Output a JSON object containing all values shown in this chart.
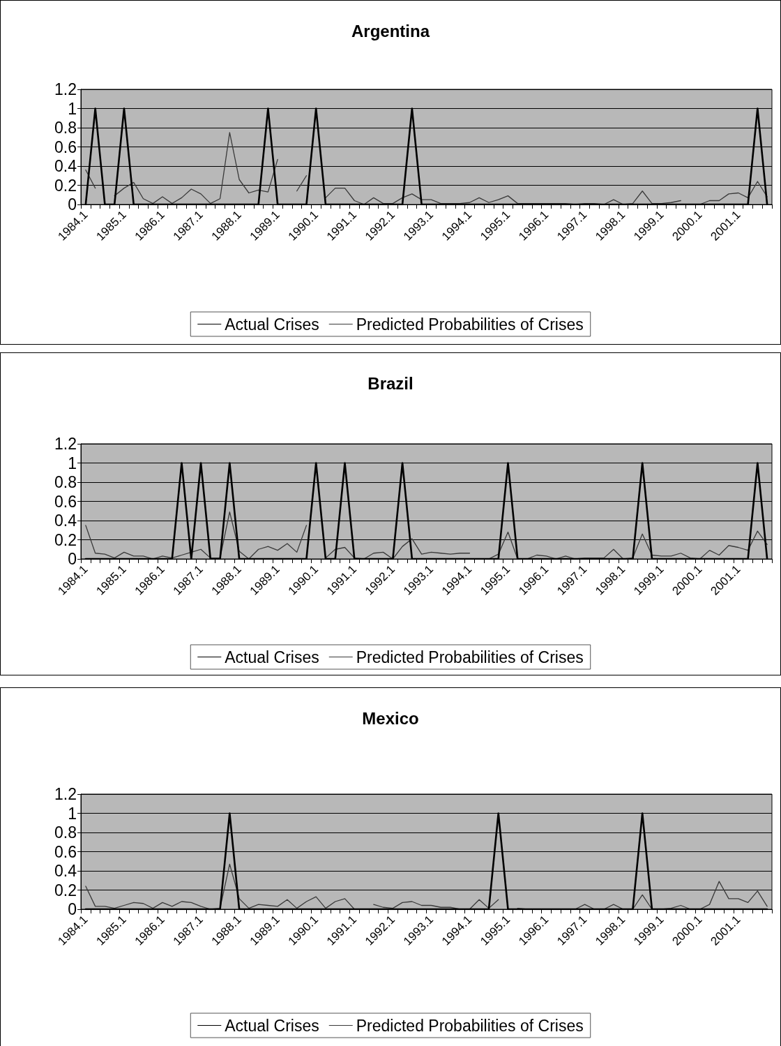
{
  "chart_data": [
    {
      "type": "line",
      "title": "Argentina",
      "categories": [
        "1984.1",
        null,
        null,
        null,
        "1985.1",
        null,
        null,
        null,
        "1986.1",
        null,
        null,
        null,
        "1987.1",
        null,
        null,
        null,
        "1988.1",
        null,
        null,
        null,
        "1989.1",
        null,
        null,
        null,
        "1990.1",
        null,
        null,
        null,
        "1991.1",
        null,
        null,
        null,
        "1992.1",
        null,
        null,
        null,
        "1993.1",
        null,
        null,
        null,
        "1994.1",
        null,
        null,
        null,
        "1995.1",
        null,
        null,
        null,
        "1996.1",
        null,
        null,
        null,
        "1997.1",
        null,
        null,
        null,
        "1998.1",
        null,
        null,
        null,
        "1999.1",
        null,
        null,
        null,
        "2000.1",
        null,
        null,
        null,
        "2001.1",
        null,
        null,
        null
      ],
      "series": [
        {
          "name": "Actual Crises",
          "color": "#000000",
          "values": [
            0,
            1,
            0,
            0,
            1,
            0,
            0,
            0,
            0,
            0,
            0,
            0,
            0,
            0,
            0,
            0,
            0,
            0,
            0,
            1,
            0,
            0,
            0,
            0,
            1,
            0,
            0,
            0,
            0,
            0,
            0,
            0,
            0,
            0,
            1,
            0,
            0,
            0,
            0,
            0,
            0,
            0,
            0,
            0,
            0,
            0,
            0,
            0,
            0,
            0,
            0,
            0,
            0,
            0,
            0,
            0,
            0,
            0,
            0,
            0,
            0,
            0,
            0,
            0,
            0,
            0,
            0,
            0,
            0,
            0,
            1,
            0
          ]
        },
        {
          "name": "Predicted Probabilities of Crises",
          "color": "#3a3a3a",
          "values": [
            0.36,
            0.17,
            null,
            0.09,
            0.17,
            0.23,
            0.06,
            0.01,
            0.08,
            0.01,
            0.07,
            0.16,
            0.11,
            0.01,
            0.06,
            0.75,
            0.26,
            0.12,
            0.15,
            0.13,
            0.47,
            null,
            0.14,
            0.3,
            null,
            0.07,
            0.17,
            0.17,
            0.04,
            0,
            0.07,
            0.01,
            0.01,
            0.07,
            0.11,
            0.05,
            0.05,
            0.01,
            0.01,
            0.01,
            0.02,
            0.07,
            0.02,
            0.05,
            0.09,
            0.01,
            0.01,
            0.01,
            0.01,
            0.01,
            0.01,
            0,
            0.01,
            0.01,
            0,
            0.05,
            0,
            0.01,
            0.14,
            0.01,
            0.01,
            0.02,
            0.04,
            null,
            0,
            0.04,
            0.04,
            0.11,
            0.12,
            0.07,
            0.24,
            0.08
          ]
        }
      ],
      "ylim": [
        0,
        1.2
      ],
      "yticks": [
        0,
        0.2,
        0.4,
        0.6,
        0.8,
        1,
        1.2
      ],
      "grid": "y",
      "legend": "bottom",
      "marker": "none"
    },
    {
      "type": "line",
      "title": "Brazil",
      "categories": [
        "1984.1",
        null,
        null,
        null,
        "1985.1",
        null,
        null,
        null,
        "1986.1",
        null,
        null,
        null,
        "1987.1",
        null,
        null,
        null,
        "1988.1",
        null,
        null,
        null,
        "1989.1",
        null,
        null,
        null,
        "1990.1",
        null,
        null,
        null,
        "1991.1",
        null,
        null,
        null,
        "1992.1",
        null,
        null,
        null,
        "1993.1",
        null,
        null,
        null,
        "1994.1",
        null,
        null,
        null,
        "1995.1",
        null,
        null,
        null,
        "1996.1",
        null,
        null,
        null,
        "1997.1",
        null,
        null,
        null,
        "1998.1",
        null,
        null,
        null,
        "1999.1",
        null,
        null,
        null,
        "2000.1",
        null,
        null,
        null,
        "2001.1",
        null,
        null,
        null
      ],
      "series": [
        {
          "name": "Actual Crises",
          "color": "#000000",
          "values": [
            0,
            0,
            0,
            0,
            0,
            0,
            0,
            0,
            0,
            0,
            1,
            0,
            1,
            0,
            0,
            1,
            0,
            0,
            0,
            0,
            0,
            0,
            0,
            0,
            1,
            0,
            0,
            1,
            0,
            0,
            0,
            0,
            0,
            1,
            0,
            0,
            0,
            0,
            0,
            0,
            0,
            0,
            0,
            0,
            1,
            0,
            0,
            0,
            0,
            0,
            0,
            0,
            0,
            0,
            0,
            0,
            0,
            0,
            1,
            0,
            0,
            0,
            0,
            0,
            0,
            0,
            0,
            0,
            0,
            0,
            1,
            0
          ]
        },
        {
          "name": "Predicted Probabilities of Crises",
          "color": "#3a3a3a",
          "values": [
            0.35,
            0.06,
            0.05,
            0.01,
            0.07,
            0.03,
            0.03,
            0,
            0.03,
            0.01,
            0.04,
            0.07,
            0.1,
            0.01,
            0.01,
            0.49,
            0.08,
            0,
            0.1,
            0.13,
            0.09,
            0.16,
            0.07,
            0.35,
            null,
            0.01,
            0.1,
            0.12,
            0.01,
            0,
            0.06,
            0.07,
            0,
            0.13,
            0.21,
            0.05,
            0.07,
            0.06,
            0.05,
            0.06,
            0.06,
            null,
            0,
            0.05,
            0.28,
            0,
            0,
            0.04,
            0.03,
            0,
            0.03,
            0,
            0.01,
            0.01,
            0.01,
            0.1,
            0,
            0.01,
            0.26,
            0.04,
            0.03,
            0.03,
            0.06,
            0.01,
            0,
            0.09,
            0.04,
            0.14,
            0.12,
            0.09,
            0.29,
            0.15
          ]
        }
      ],
      "ylim": [
        0,
        1.2
      ],
      "yticks": [
        0,
        0.2,
        0.4,
        0.6,
        0.8,
        1,
        1.2
      ],
      "grid": "y",
      "legend": "bottom",
      "marker": "none"
    },
    {
      "type": "line",
      "title": "Mexico",
      "categories": [
        "1984.1",
        null,
        null,
        null,
        "1985.1",
        null,
        null,
        null,
        "1986.1",
        null,
        null,
        null,
        "1987.1",
        null,
        null,
        null,
        "1988.1",
        null,
        null,
        null,
        "1989.1",
        null,
        null,
        null,
        "1990.1",
        null,
        null,
        null,
        "1991.1",
        null,
        null,
        null,
        "1992.1",
        null,
        null,
        null,
        "1993.1",
        null,
        null,
        null,
        "1994.1",
        null,
        null,
        null,
        "1995.1",
        null,
        null,
        null,
        "1996.1",
        null,
        null,
        null,
        "1997.1",
        null,
        null,
        null,
        "1998.1",
        null,
        null,
        null,
        "1999.1",
        null,
        null,
        null,
        "2000.1",
        null,
        null,
        null,
        "2001.1",
        null,
        null,
        null
      ],
      "series": [
        {
          "name": "Actual Crises",
          "color": "#000000",
          "values": [
            0,
            0,
            0,
            0,
            0,
            0,
            0,
            0,
            0,
            0,
            0,
            0,
            0,
            0,
            0,
            1,
            0,
            0,
            0,
            0,
            0,
            0,
            0,
            0,
            0,
            0,
            0,
            0,
            0,
            0,
            0,
            0,
            0,
            0,
            0,
            0,
            0,
            0,
            0,
            0,
            0,
            0,
            0,
            1,
            0,
            0,
            0,
            0,
            0,
            0,
            0,
            0,
            0,
            0,
            0,
            0,
            0,
            0,
            1,
            0,
            0,
            0,
            0,
            0,
            0,
            0,
            0,
            0,
            0,
            0,
            0,
            0
          ]
        },
        {
          "name": "Predicted Probabilities of Crises",
          "color": "#3a3a3a",
          "values": [
            0.24,
            0.03,
            0.03,
            0.01,
            0.04,
            0.07,
            0.06,
            0.01,
            0.07,
            0.03,
            0.08,
            0.07,
            0.03,
            0,
            0.01,
            0.47,
            0.11,
            0.01,
            0.05,
            0.04,
            0.03,
            0.1,
            0.01,
            0.08,
            0.13,
            0.01,
            0.08,
            0.11,
            0,
            null,
            0.05,
            0.02,
            0.01,
            0.07,
            0.08,
            0.04,
            0.04,
            0.02,
            0.02,
            0,
            0,
            0.1,
            0.01,
            0.1,
            null,
            0.01,
            0,
            0,
            0,
            0,
            0,
            0,
            0.05,
            0,
            0,
            0.05,
            0,
            0,
            0.15,
            0,
            0,
            0.01,
            0.04,
            0,
            0,
            0.05,
            0.29,
            0.11,
            0.11,
            0.07,
            0.19,
            0.03
          ]
        }
      ],
      "ylim": [
        0,
        1.2
      ],
      "yticks": [
        0,
        0.2,
        0.4,
        0.6,
        0.8,
        1,
        1.2
      ],
      "grid": "y",
      "legend": "bottom",
      "marker": "none"
    }
  ]
}
